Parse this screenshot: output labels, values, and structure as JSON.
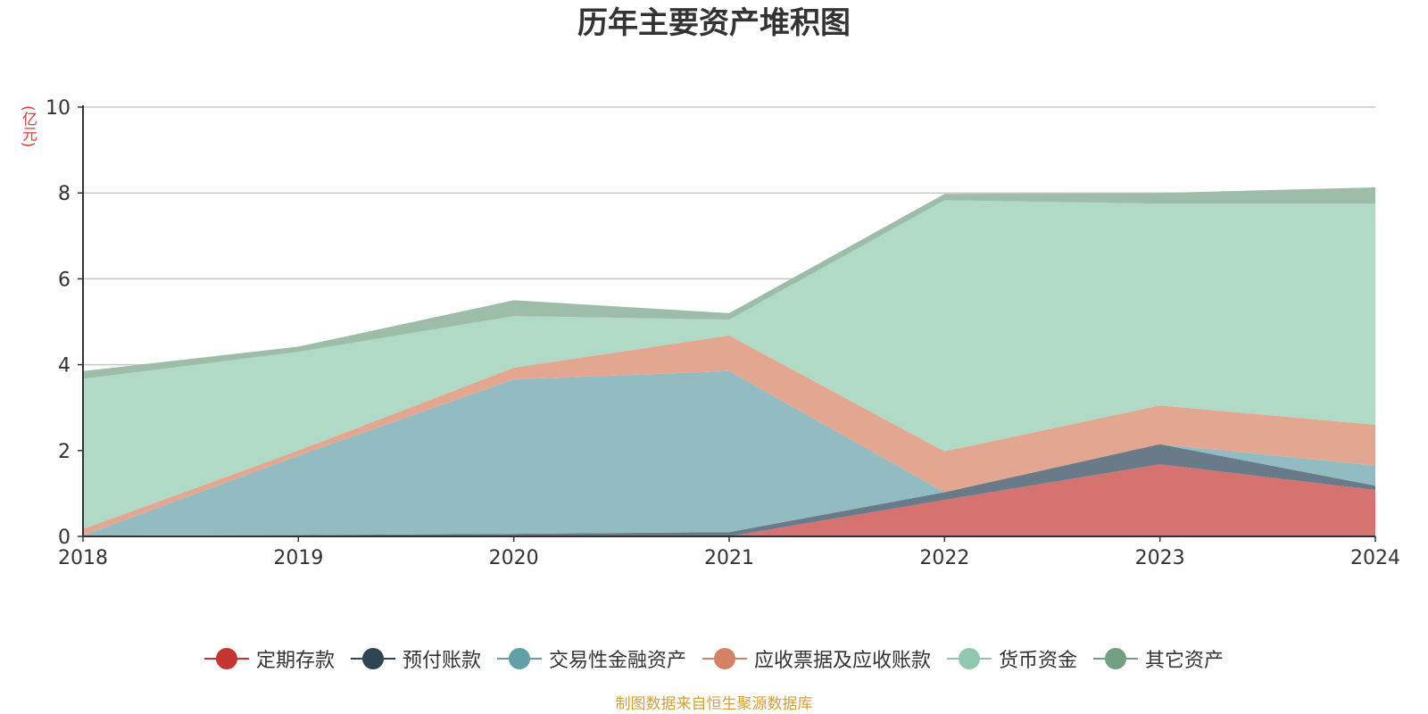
{
  "chart_data": {
    "type": "area",
    "stacked": true,
    "title": "历年主要资产堆积图",
    "ylabel": "(亿元)",
    "xlabel": "",
    "categories": [
      "2018",
      "2019",
      "2020",
      "2021",
      "2022",
      "2023",
      "2024"
    ],
    "yticks": [
      "0",
      "2",
      "4",
      "6",
      "8",
      "10"
    ],
    "ylim": [
      0,
      10
    ],
    "grid": true,
    "legend_position": "bottom",
    "series": [
      {
        "name": "定期存款",
        "color": "#d67270",
        "marker_color": "#c23531",
        "values": [
          0,
          0,
          0,
          0,
          0.85,
          1.68,
          1.08
        ]
      },
      {
        "name": "预付账款",
        "color": "#697a88",
        "marker_color": "#2f4554",
        "values": [
          0.02,
          0.03,
          0.06,
          0.1,
          0.18,
          0.47,
          0.1
        ]
      },
      {
        "name": "交易性金融资产",
        "color": "#93bcc2",
        "marker_color": "#61a0a8",
        "values": [
          0,
          1.85,
          3.6,
          3.75,
          0,
          0,
          0.47
        ]
      },
      {
        "name": "应收票据及应收账款",
        "color": "#e3a690",
        "marker_color": "#d48265",
        "values": [
          0.15,
          0.12,
          0.27,
          0.83,
          0.95,
          0.9,
          0.95
        ]
      },
      {
        "name": "货币资金",
        "color": "#b0d9c6",
        "marker_color": "#91c7ae",
        "values": [
          3.5,
          2.3,
          1.2,
          0.37,
          5.85,
          4.7,
          5.15
        ]
      },
      {
        "name": "其它资产",
        "color": "#9ebda9",
        "marker_color": "#749f83",
        "values": [
          0.18,
          0.12,
          0.37,
          0.15,
          0.15,
          0.25,
          0.38
        ]
      }
    ]
  },
  "source_note": "制图数据来自恒生聚源数据库"
}
